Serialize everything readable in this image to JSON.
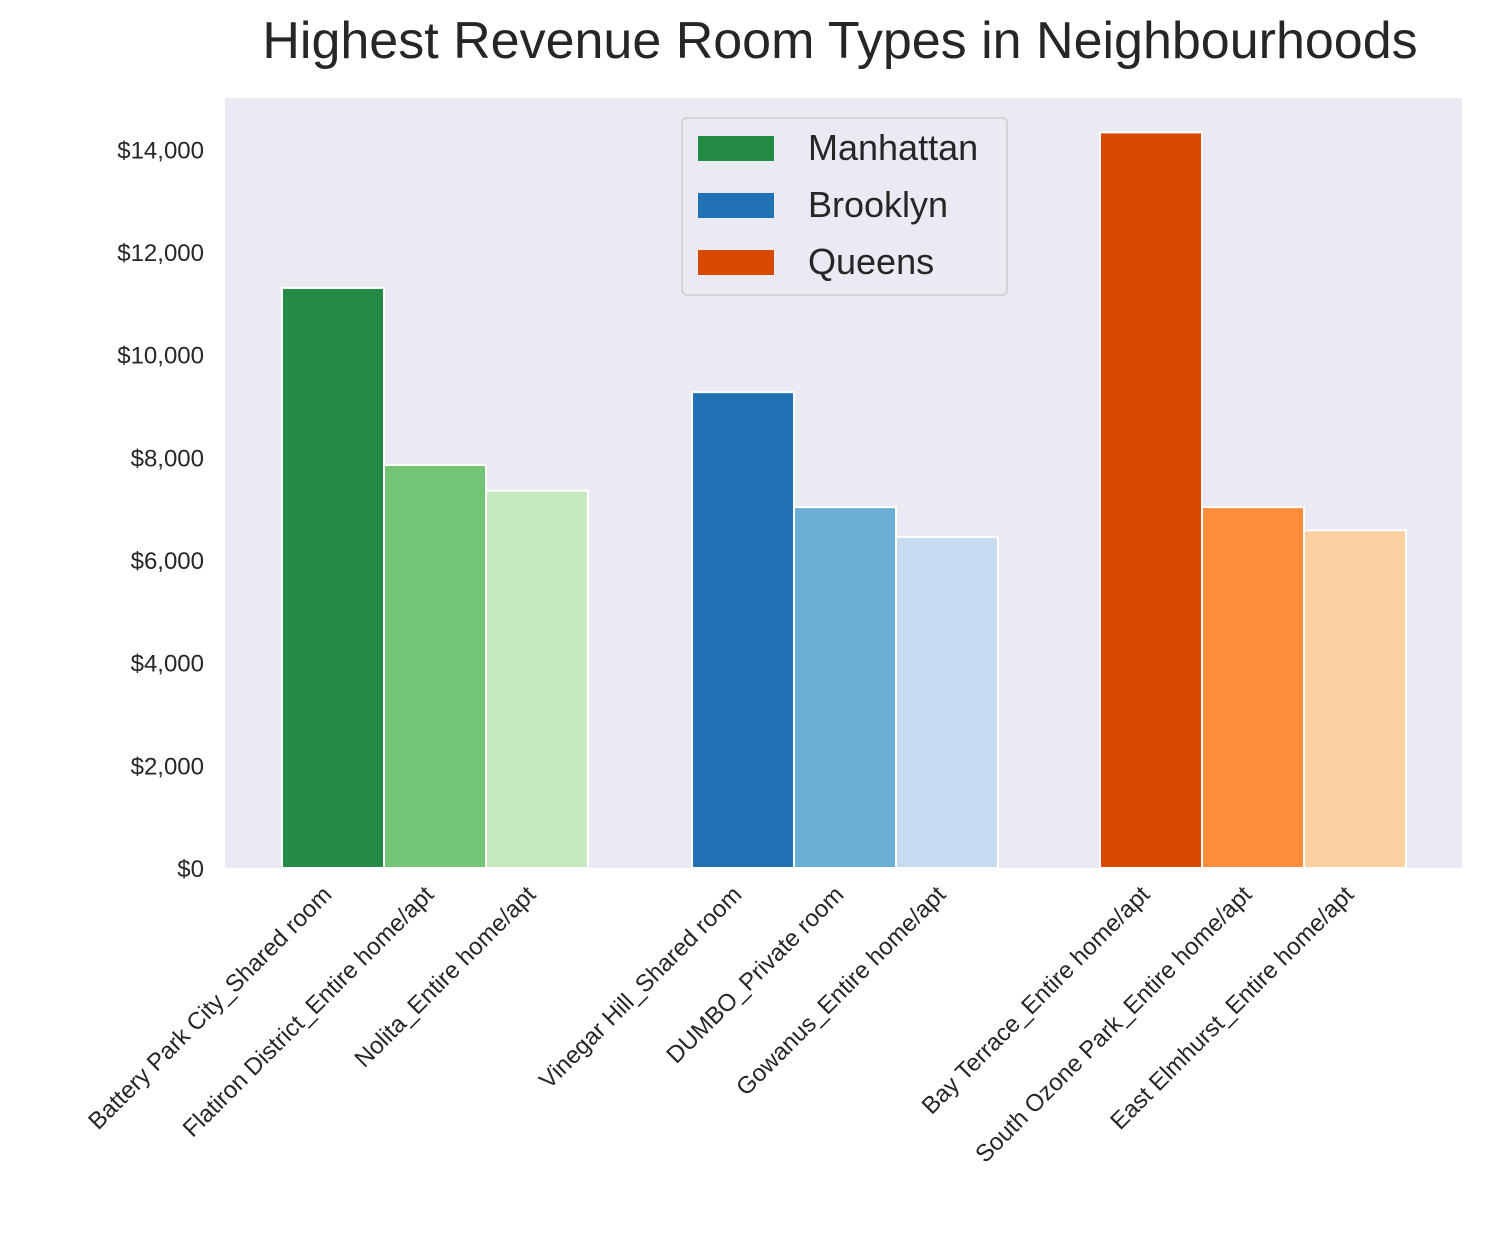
{
  "chart_data": {
    "type": "bar",
    "title": "Highest Revenue Room Types in Neighbourhoods",
    "xlabel": "",
    "ylabel": "",
    "ylim": [
      0,
      15000
    ],
    "yticks": [
      0,
      2000,
      4000,
      6000,
      8000,
      10000,
      12000,
      14000
    ],
    "ytick_labels": [
      "$0",
      "$2,000",
      "$4,000",
      "$6,000",
      "$8,000",
      "$10,000",
      "$12,000",
      "$14,000"
    ],
    "grid": false,
    "background": "#eaeaf2",
    "legend": {
      "placement": "top-center",
      "entries": [
        {
          "label": "Manhattan",
          "color": "#238b45"
        },
        {
          "label": "Brooklyn",
          "color": "#2171b5"
        },
        {
          "label": "Queens",
          "color": "#d94801"
        }
      ]
    },
    "groups": [
      {
        "name": "Manhattan",
        "bars": [
          {
            "label": "Battery Park City_Shared room",
            "value": 11300,
            "color": "#238b45"
          },
          {
            "label": "Flatiron District_Entire home/apt",
            "value": 7850,
            "color": "#74c476"
          },
          {
            "label": "Nolita_Entire home/apt",
            "value": 7350,
            "color": "#c7e9c0"
          }
        ]
      },
      {
        "name": "Brooklyn",
        "bars": [
          {
            "label": "Vinegar Hill_Shared room",
            "value": 9270,
            "color": "#2171b5"
          },
          {
            "label": "DUMBO_Private room",
            "value": 7030,
            "color": "#6baed6"
          },
          {
            "label": "Gowanus_Entire home/apt",
            "value": 6450,
            "color": "#c6dbef"
          }
        ]
      },
      {
        "name": "Queens",
        "bars": [
          {
            "label": "Bay Terrace_Entire home/apt",
            "value": 14330,
            "color": "#d94801"
          },
          {
            "label": "South Ozone Park_Entire home/apt",
            "value": 7030,
            "color": "#fd8d3c"
          },
          {
            "label": "East Elmhurst_Entire home/apt",
            "value": 6580,
            "color": "#fdd0a2"
          }
        ]
      }
    ]
  }
}
